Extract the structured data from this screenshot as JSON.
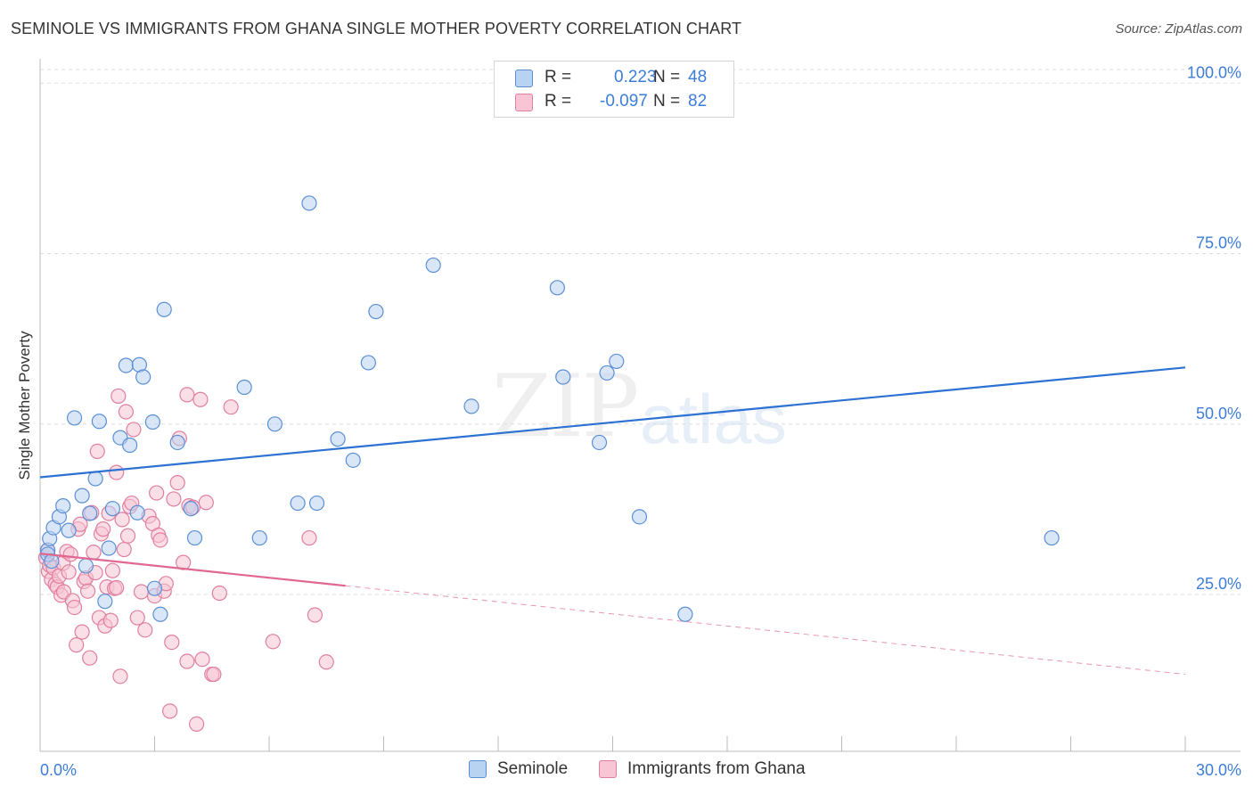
{
  "title": "SEMINOLE VS IMMIGRANTS FROM GHANA SINGLE MOTHER POVERTY CORRELATION CHART",
  "source": "Source: ZipAtlas.com",
  "watermark": {
    "zip": "ZIP",
    "atlas": "atlas"
  },
  "legend_top": {
    "rows": [
      {
        "r_label": "R =",
        "r_value": "0.223",
        "n_label": "N =",
        "n_value": "48"
      },
      {
        "r_label": "R =",
        "r_value": "-0.097",
        "n_label": "N =",
        "n_value": "82"
      }
    ]
  },
  "legend_bottom": [
    {
      "label": "Seminole"
    },
    {
      "label": "Immigrants from Ghana"
    }
  ],
  "colors": {
    "blue_fill": "#b8d2f2",
    "blue_stroke": "#5b8fd4",
    "blue_line": "#2d72d2",
    "pink_fill": "#f7c5d4",
    "pink_stroke": "#e07f9f",
    "pink_line": "#e06890",
    "tick_text": "#3d7dd8",
    "grid": "#dddddd"
  },
  "chart_data": {
    "type": "scatter",
    "title": "SEMINOLE VS IMMIGRANTS FROM GHANA SINGLE MOTHER POVERTY CORRELATION CHART",
    "xlabel": "",
    "ylabel": "Single Mother Poverty",
    "xlim": [
      0,
      30
    ],
    "ylim": [
      2,
      102
    ],
    "x_tick_labels": [
      {
        "value": 0,
        "label": "0.0%"
      },
      {
        "value": 30,
        "label": "30.0%"
      }
    ],
    "y_tick_labels": [
      {
        "value": 25,
        "label": "25.0%"
      },
      {
        "value": 50,
        "label": "50.0%"
      },
      {
        "value": 75,
        "label": "75.0%"
      },
      {
        "value": 100,
        "label": "100.0%"
      }
    ],
    "grid": true,
    "series": [
      {
        "name": "Seminole",
        "r": 0.223,
        "n": 48,
        "trend": {
          "x": [
            0,
            30
          ],
          "y": [
            42.2,
            58.3
          ],
          "dashed_from_x": null
        },
        "points": [
          [
            0.2,
            31.5
          ],
          [
            0.2,
            30.9
          ],
          [
            0.25,
            33.2
          ],
          [
            0.3,
            29.9
          ],
          [
            0.35,
            34.8
          ],
          [
            0.5,
            36.4
          ],
          [
            0.6,
            38.0
          ],
          [
            0.75,
            34.4
          ],
          [
            0.9,
            50.9
          ],
          [
            1.1,
            39.5
          ],
          [
            1.2,
            29.2
          ],
          [
            1.3,
            36.9
          ],
          [
            1.45,
            42.0
          ],
          [
            1.55,
            50.4
          ],
          [
            1.7,
            24.0
          ],
          [
            1.8,
            31.8
          ],
          [
            1.9,
            37.6
          ],
          [
            2.1,
            48.0
          ],
          [
            2.25,
            58.6
          ],
          [
            2.35,
            46.9
          ],
          [
            2.55,
            37.0
          ],
          [
            2.6,
            58.7
          ],
          [
            2.7,
            56.9
          ],
          [
            2.95,
            50.3
          ],
          [
            3.0,
            25.9
          ],
          [
            3.15,
            22.1
          ],
          [
            3.25,
            66.8
          ],
          [
            3.6,
            47.3
          ],
          [
            3.95,
            37.6
          ],
          [
            4.05,
            33.3
          ],
          [
            5.35,
            55.4
          ],
          [
            5.75,
            33.3
          ],
          [
            6.15,
            50.0
          ],
          [
            6.75,
            38.4
          ],
          [
            7.05,
            82.4
          ],
          [
            7.25,
            38.4
          ],
          [
            7.8,
            47.8
          ],
          [
            8.2,
            44.7
          ],
          [
            8.6,
            59.0
          ],
          [
            8.8,
            66.5
          ],
          [
            10.3,
            73.3
          ],
          [
            11.3,
            52.6
          ],
          [
            13.55,
            70.0
          ],
          [
            13.7,
            56.9
          ],
          [
            14.65,
            47.3
          ],
          [
            14.85,
            57.5
          ],
          [
            15.1,
            59.2
          ],
          [
            15.7,
            36.4
          ],
          [
            16.9,
            22.1
          ],
          [
            26.5,
            33.3
          ]
        ]
      },
      {
        "name": "Immigrants from Ghana",
        "r": -0.097,
        "n": 82,
        "trend": {
          "x": [
            0,
            30
          ],
          "y": [
            31.0,
            13.3
          ],
          "dashed_from_x": 8.0
        },
        "points": [
          [
            0.15,
            30.4
          ],
          [
            0.2,
            31.5
          ],
          [
            0.22,
            28.4
          ],
          [
            0.25,
            29.3
          ],
          [
            0.3,
            27.2
          ],
          [
            0.35,
            28.9
          ],
          [
            0.4,
            26.5
          ],
          [
            0.45,
            26.1
          ],
          [
            0.5,
            27.7
          ],
          [
            0.55,
            24.9
          ],
          [
            0.6,
            29.6
          ],
          [
            0.62,
            25.4
          ],
          [
            0.7,
            31.3
          ],
          [
            0.75,
            28.3
          ],
          [
            0.8,
            30.9
          ],
          [
            0.85,
            24.1
          ],
          [
            0.9,
            23.1
          ],
          [
            0.95,
            17.6
          ],
          [
            1.0,
            34.6
          ],
          [
            1.05,
            35.3
          ],
          [
            1.1,
            19.5
          ],
          [
            1.15,
            26.9
          ],
          [
            1.2,
            27.4
          ],
          [
            1.25,
            25.5
          ],
          [
            1.3,
            15.7
          ],
          [
            1.35,
            37.0
          ],
          [
            1.4,
            31.2
          ],
          [
            1.45,
            28.2
          ],
          [
            1.5,
            46.0
          ],
          [
            1.55,
            21.6
          ],
          [
            1.6,
            33.9
          ],
          [
            1.65,
            34.6
          ],
          [
            1.7,
            20.4
          ],
          [
            1.75,
            26.1
          ],
          [
            1.8,
            36.9
          ],
          [
            1.85,
            21.2
          ],
          [
            1.9,
            28.5
          ],
          [
            1.95,
            25.9
          ],
          [
            2.0,
            42.9
          ],
          [
            2.05,
            54.1
          ],
          [
            2.1,
            13.0
          ],
          [
            2.15,
            36.0
          ],
          [
            2.2,
            31.6
          ],
          [
            2.25,
            51.8
          ],
          [
            2.3,
            33.6
          ],
          [
            2.35,
            37.9
          ],
          [
            2.4,
            38.4
          ],
          [
            2.45,
            49.2
          ],
          [
            2.55,
            21.6
          ],
          [
            2.65,
            25.4
          ],
          [
            2.75,
            19.8
          ],
          [
            2.85,
            36.5
          ],
          [
            2.95,
            35.4
          ],
          [
            3.0,
            24.8
          ],
          [
            3.05,
            39.9
          ],
          [
            3.1,
            33.7
          ],
          [
            3.25,
            25.5
          ],
          [
            3.3,
            26.6
          ],
          [
            3.4,
            7.9
          ],
          [
            3.45,
            18.0
          ],
          [
            3.5,
            39.0
          ],
          [
            3.6,
            41.4
          ],
          [
            3.65,
            47.9
          ],
          [
            3.75,
            29.7
          ],
          [
            3.85,
            15.2
          ],
          [
            3.9,
            38.0
          ],
          [
            4.0,
            37.8
          ],
          [
            4.2,
            53.6
          ],
          [
            4.35,
            38.5
          ],
          [
            4.25,
            15.5
          ],
          [
            4.1,
            6.0
          ],
          [
            4.5,
            13.3
          ],
          [
            4.55,
            13.3
          ],
          [
            4.7,
            25.2
          ],
          [
            5.0,
            52.5
          ],
          [
            6.1,
            18.1
          ],
          [
            7.05,
            33.3
          ],
          [
            7.2,
            22.0
          ],
          [
            7.5,
            15.1
          ],
          [
            3.15,
            33.0
          ],
          [
            2.0,
            26.0
          ],
          [
            3.85,
            54.3
          ]
        ]
      }
    ]
  }
}
